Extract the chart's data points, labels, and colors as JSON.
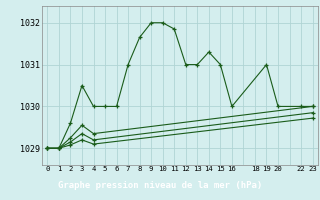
{
  "title": "Graphe pression niveau de la mer (hPa)",
  "bg_color": "#d4eeee",
  "label_bg_color": "#2d7a2d",
  "label_text_color": "#ffffff",
  "grid_color": "#b0d4d4",
  "line_color": "#1a5c1a",
  "marker_color": "#1a5c1a",
  "xlim": [
    -0.5,
    23.5
  ],
  "ylim": [
    1028.6,
    1032.4
  ],
  "yticks": [
    1029,
    1030,
    1031,
    1032
  ],
  "xtick_labels": [
    "0",
    "1",
    "2",
    "3",
    "4",
    "5",
    "6",
    "7",
    "8",
    "9",
    "10",
    "11",
    "12",
    "13",
    "14",
    "15",
    "16",
    "",
    "18",
    "19",
    "20",
    "",
    "22",
    "23"
  ],
  "series": [
    {
      "x": [
        0,
        1,
        2,
        3,
        4,
        5,
        6,
        7,
        8,
        9,
        10,
        11,
        12,
        13,
        14,
        15,
        16,
        19,
        20,
        22,
        23
      ],
      "y": [
        1029.0,
        1029.0,
        1029.6,
        1030.5,
        1030.0,
        1030.0,
        1030.0,
        1031.0,
        1031.65,
        1032.0,
        1032.0,
        1031.85,
        1031.0,
        1031.0,
        1031.3,
        1031.0,
        1030.0,
        1031.0,
        1030.0,
        1030.0,
        1030.0
      ]
    },
    {
      "x": [
        0,
        1,
        2,
        3,
        4,
        23
      ],
      "y": [
        1029.0,
        1029.0,
        1029.25,
        1029.55,
        1029.35,
        1030.0
      ]
    },
    {
      "x": [
        0,
        1,
        2,
        3,
        4,
        23
      ],
      "y": [
        1029.0,
        1029.0,
        1029.15,
        1029.35,
        1029.2,
        1029.85
      ]
    },
    {
      "x": [
        0,
        1,
        2,
        3,
        4,
        23
      ],
      "y": [
        1029.0,
        1029.0,
        1029.08,
        1029.2,
        1029.1,
        1029.72
      ]
    }
  ]
}
